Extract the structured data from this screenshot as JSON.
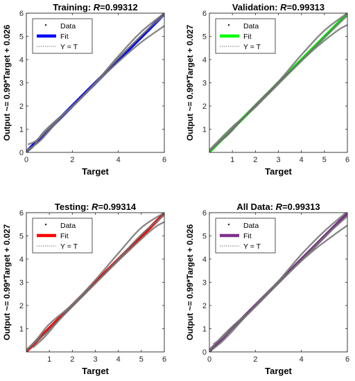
{
  "chart_data": [
    {
      "type": "scatter",
      "title_prefix": "Training: ",
      "title_r": "R",
      "title_value": "=0.99312",
      "xlabel": "Target",
      "ylabel": "Output ~= 0.99*Target + 0.026",
      "xlim": [
        0,
        6
      ],
      "ylim": [
        0,
        6
      ],
      "xticks": [
        "0",
        "2",
        "4",
        "6"
      ],
      "yticks": [
        "0",
        "1",
        "2",
        "3",
        "4",
        "5",
        "6"
      ],
      "fit_color": "#0000ff",
      "grid": false,
      "legend_position": "top-left",
      "legend": [
        "Data",
        "Fit",
        "Y = T"
      ],
      "fit": {
        "slope": 0.99,
        "intercept": 0.026
      },
      "data_curves": [
        [
          [
            0.0,
            0.02
          ],
          [
            0.3,
            0.25
          ],
          [
            0.7,
            0.82
          ],
          [
            1.2,
            1.3
          ],
          [
            2.0,
            2.0
          ],
          [
            3.0,
            3.0
          ],
          [
            4.0,
            4.15
          ],
          [
            5.0,
            5.2
          ],
          [
            6.0,
            6.0
          ]
        ],
        [
          [
            0.1,
            0.35
          ],
          [
            0.5,
            0.55
          ],
          [
            1.0,
            1.05
          ],
          [
            2.0,
            1.98
          ],
          [
            3.0,
            2.97
          ],
          [
            4.0,
            3.9
          ],
          [
            5.0,
            4.75
          ],
          [
            6.0,
            5.45
          ]
        ],
        [
          [
            0.0,
            0.1
          ],
          [
            0.6,
            0.5
          ],
          [
            1.5,
            1.5
          ],
          [
            2.5,
            2.45
          ],
          [
            3.5,
            3.55
          ],
          [
            4.5,
            4.55
          ],
          [
            5.5,
            5.5
          ],
          [
            6.0,
            5.9
          ]
        ]
      ]
    },
    {
      "type": "scatter",
      "title_prefix": "Validation: ",
      "title_r": "R",
      "title_value": "=0.99313",
      "xlabel": "Target",
      "ylabel": "Output ~= 0.99*Target + 0.027",
      "xlim": [
        0,
        6
      ],
      "ylim": [
        0,
        6
      ],
      "xticks": [
        "1",
        "2",
        "3",
        "4",
        "5",
        "6"
      ],
      "yticks": [
        "1",
        "2",
        "3",
        "4",
        "5",
        "6"
      ],
      "fit_color": "#00ff00",
      "grid": false,
      "legend_position": "top-left",
      "legend": [
        "Data",
        "Fit",
        "Y = T"
      ],
      "fit": {
        "slope": 0.99,
        "intercept": 0.027
      },
      "data_curves": [
        [
          [
            0.0,
            0.05
          ],
          [
            0.5,
            0.5
          ],
          [
            1.0,
            1.0
          ],
          [
            2.0,
            2.05
          ],
          [
            3.0,
            3.05
          ],
          [
            4.0,
            4.2
          ],
          [
            5.0,
            5.25
          ],
          [
            6.0,
            6.0
          ]
        ],
        [
          [
            0.2,
            0.3
          ],
          [
            0.8,
            0.75
          ],
          [
            1.5,
            1.5
          ],
          [
            2.5,
            2.45
          ],
          [
            3.5,
            3.45
          ],
          [
            4.5,
            4.4
          ],
          [
            5.5,
            5.2
          ],
          [
            6.0,
            5.5
          ]
        ],
        [
          [
            0.0,
            0.1
          ],
          [
            1.0,
            1.1
          ],
          [
            2.0,
            1.95
          ],
          [
            3.0,
            3.0
          ],
          [
            4.0,
            3.95
          ],
          [
            5.0,
            4.95
          ],
          [
            6.0,
            5.9
          ]
        ]
      ]
    },
    {
      "type": "scatter",
      "title_prefix": "Testing: ",
      "title_r": "R",
      "title_value": "=0.99314",
      "xlabel": "Target",
      "ylabel": "Output ~= 0.99*Target + 0.027",
      "xlim": [
        0,
        6
      ],
      "ylim": [
        0,
        6
      ],
      "xticks": [
        "1",
        "2",
        "3",
        "4",
        "5",
        "6"
      ],
      "yticks": [
        "1",
        "2",
        "3",
        "4",
        "5",
        "6"
      ],
      "fit_color": "#ff0000",
      "grid": false,
      "legend_position": "top-left",
      "legend": [
        "Data",
        "Fit",
        "Y = T"
      ],
      "fit": {
        "slope": 0.99,
        "intercept": 0.027
      },
      "data_curves": [
        [
          [
            0.0,
            0.05
          ],
          [
            0.5,
            0.6
          ],
          [
            1.0,
            1.2
          ],
          [
            2.0,
            2.05
          ],
          [
            3.0,
            3.1
          ],
          [
            4.0,
            4.25
          ],
          [
            5.0,
            5.35
          ],
          [
            6.0,
            6.0
          ]
        ],
        [
          [
            0.3,
            0.2
          ],
          [
            0.8,
            0.65
          ],
          [
            1.5,
            1.45
          ],
          [
            2.5,
            2.45
          ],
          [
            3.5,
            3.45
          ],
          [
            4.5,
            4.4
          ],
          [
            5.5,
            5.3
          ],
          [
            6.0,
            5.6
          ]
        ],
        [
          [
            0.0,
            0.1
          ],
          [
            1.0,
            0.95
          ],
          [
            2.0,
            2.0
          ],
          [
            3.0,
            2.95
          ],
          [
            4.0,
            4.0
          ],
          [
            5.0,
            5.05
          ],
          [
            6.0,
            5.9
          ]
        ]
      ]
    },
    {
      "type": "scatter",
      "title_prefix": "All Data: ",
      "title_r": "R",
      "title_value": "=0.99313",
      "xlabel": "Target",
      "ylabel": "Output ~= 0.99*Target + 0.026",
      "xlim": [
        0,
        6
      ],
      "ylim": [
        0,
        6
      ],
      "xticks": [
        "0",
        "2",
        "4",
        "6"
      ],
      "yticks": [
        "0",
        "1",
        "2",
        "3",
        "4",
        "5",
        "6"
      ],
      "fit_color": "#7e2f8e",
      "grid": false,
      "legend_position": "top-left",
      "legend": [
        "Data",
        "Fit",
        "Y = T"
      ],
      "fit": {
        "slope": 0.99,
        "intercept": 0.026
      },
      "data_curves": [
        [
          [
            0.0,
            0.02
          ],
          [
            0.5,
            0.4
          ],
          [
            1.0,
            0.9
          ],
          [
            2.0,
            2.0
          ],
          [
            3.0,
            3.05
          ],
          [
            4.0,
            4.2
          ],
          [
            5.0,
            5.2
          ],
          [
            6.0,
            6.05
          ]
        ],
        [
          [
            0.2,
            0.35
          ],
          [
            0.8,
            0.8
          ],
          [
            1.5,
            1.45
          ],
          [
            2.5,
            2.45
          ],
          [
            3.5,
            3.45
          ],
          [
            4.5,
            4.35
          ],
          [
            5.5,
            5.1
          ],
          [
            6.0,
            5.45
          ]
        ],
        [
          [
            0.0,
            0.1
          ],
          [
            1.0,
            1.1
          ],
          [
            2.0,
            1.95
          ],
          [
            3.0,
            2.98
          ],
          [
            4.0,
            3.95
          ],
          [
            5.0,
            4.95
          ],
          [
            6.0,
            5.85
          ]
        ]
      ]
    }
  ]
}
